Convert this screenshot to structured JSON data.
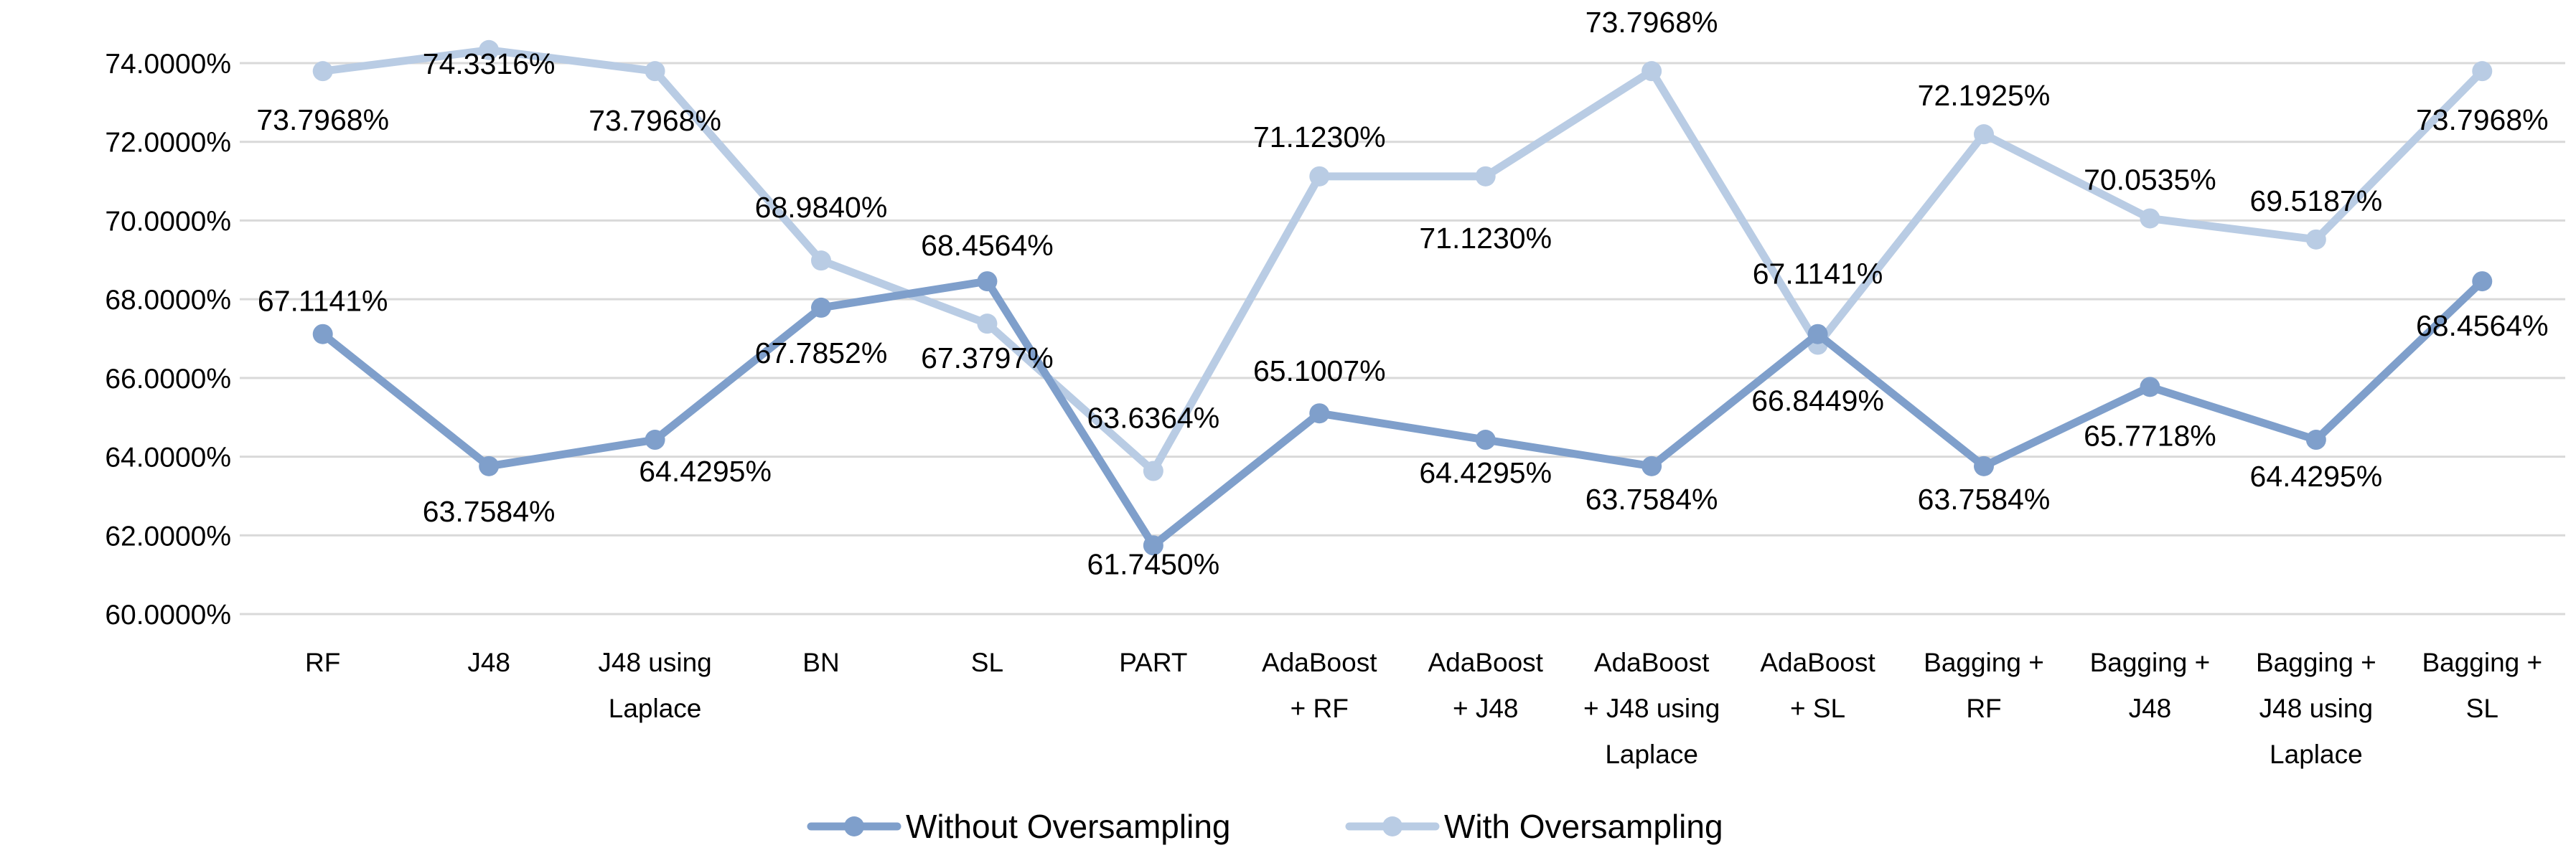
{
  "chart_data": {
    "type": "line",
    "title": "",
    "xlabel": "",
    "ylabel": "",
    "ylim": [
      60,
      74
    ],
    "y_ticks": [
      "60.0000%",
      "62.0000%",
      "64.0000%",
      "66.0000%",
      "68.0000%",
      "70.0000%",
      "72.0000%",
      "74.0000%"
    ],
    "grid": "horizontal",
    "legend_position": "bottom",
    "categories": [
      [
        "RF"
      ],
      [
        "J48"
      ],
      [
        "J48 using",
        "Laplace"
      ],
      [
        "BN"
      ],
      [
        "SL"
      ],
      [
        "PART"
      ],
      [
        "AdaBoost",
        "+ RF"
      ],
      [
        "AdaBoost",
        "+ J48"
      ],
      [
        "AdaBoost",
        "+ J48 using",
        "Laplace"
      ],
      [
        "AdaBoost",
        "+ SL"
      ],
      [
        "Bagging +",
        "RF"
      ],
      [
        "Bagging +",
        "J48"
      ],
      [
        "Bagging +",
        "J48 using",
        "Laplace"
      ],
      [
        "Bagging +",
        "SL"
      ]
    ],
    "series": [
      {
        "name": "Without Oversampling",
        "color": "#7f9fcb",
        "values": [
          67.1141,
          63.7584,
          64.4295,
          67.7852,
          68.4564,
          61.745,
          65.1007,
          64.4295,
          63.7584,
          67.1141,
          63.7584,
          65.7718,
          64.4295,
          68.4564
        ],
        "labels": [
          "67.1141%",
          "63.7584%",
          "64.4295%",
          "67.7852%",
          "68.4564%",
          "61.7450%",
          "65.1007%",
          "64.4295%",
          "63.7584%",
          "67.1141%",
          "63.7584%",
          "65.7718%",
          "64.4295%",
          "68.4564%"
        ]
      },
      {
        "name": "With Oversampling",
        "color": "#b9cce4",
        "values": [
          73.7968,
          74.3316,
          73.7968,
          68.984,
          67.3797,
          63.6364,
          71.123,
          71.123,
          73.7968,
          66.8449,
          72.1925,
          70.0535,
          69.5187,
          73.7968
        ],
        "labels": [
          "73.7968%",
          "74.3316%",
          "73.7968%",
          "68.9840%",
          "67.3797%",
          "63.6364%",
          "71.1230%",
          "71.1230%",
          "73.7968%",
          "66.8449%",
          "72.1925%",
          "70.0535%",
          "69.5187%",
          "73.7968%"
        ]
      }
    ]
  }
}
